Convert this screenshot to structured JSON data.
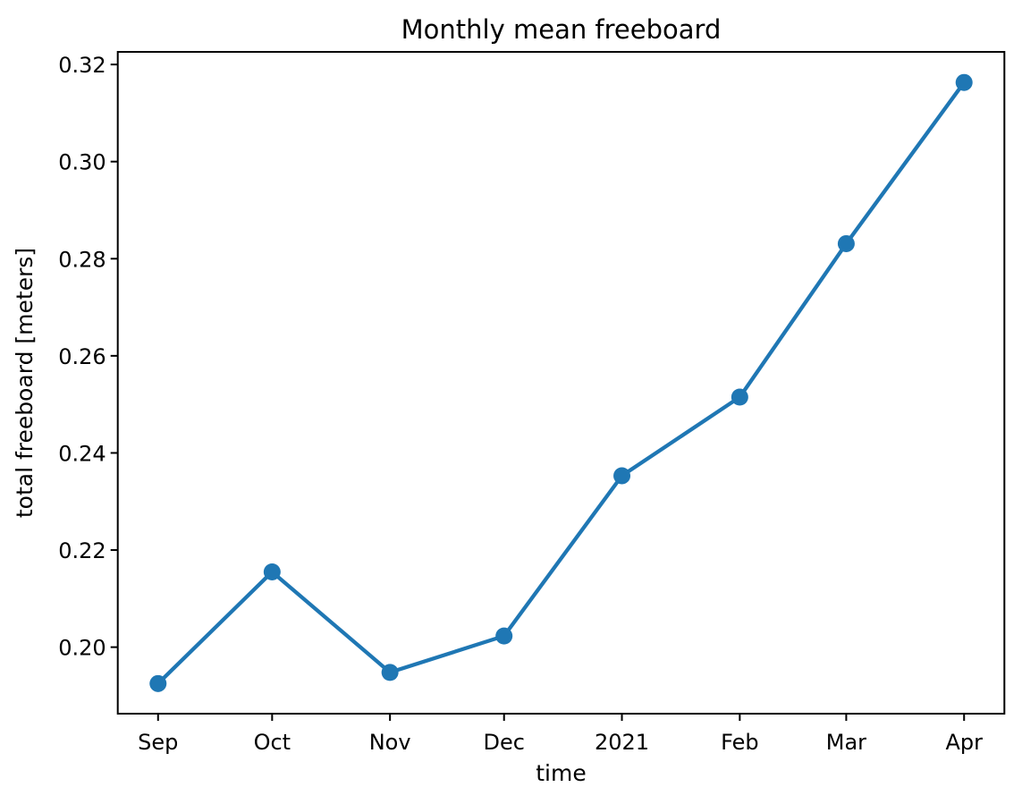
{
  "figure": {
    "background": "#ffffff"
  },
  "chart_data": {
    "type": "line",
    "title": "Monthly mean freeboard",
    "xlabel": "time",
    "ylabel": "total freeboard [meters]",
    "x_tick_labels": [
      "Sep",
      "Oct",
      "Nov",
      "Dec",
      "2021",
      "Feb",
      "Mar",
      "Apr"
    ],
    "x_day_offsets": [
      0,
      30,
      61,
      91,
      122,
      153,
      181,
      212
    ],
    "series": [
      {
        "name": "monthly mean freeboard",
        "color": "#1f77b4",
        "values": [
          0.1925,
          0.2155,
          0.1948,
          0.2023,
          0.2353,
          0.2515,
          0.2831,
          0.3163
        ]
      }
    ],
    "y_ticks": [
      0.2,
      0.22,
      0.24,
      0.26,
      0.28,
      0.3,
      0.32
    ],
    "y_tick_format_decimals": 2,
    "ylim": [
      0.1863,
      0.3226
    ],
    "xlim_days": [
      -10.6,
      222.6
    ],
    "grid": false,
    "legend": "none",
    "marker": "circle"
  },
  "style": {
    "line_color": "#1f77b4",
    "marker_color": "#1f77b4",
    "spine_color": "#000000",
    "text_color": "#000000"
  }
}
